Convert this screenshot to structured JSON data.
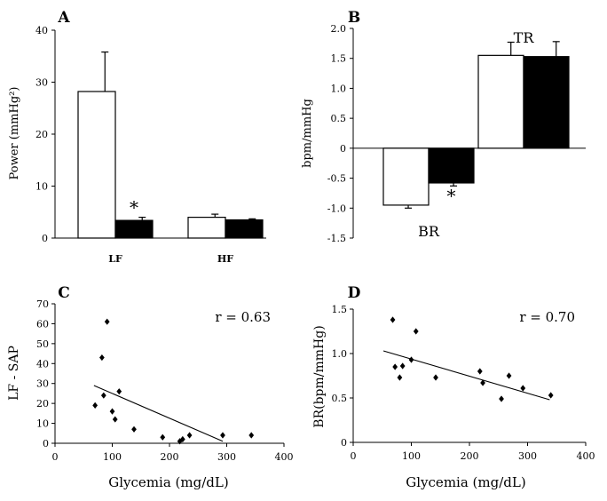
{
  "chart_data": [
    {
      "panel": "A",
      "type": "bar",
      "ylabel": "Power (mmHg²)",
      "ylim": [
        0,
        40
      ],
      "yticks": [
        "0",
        "10",
        "20",
        "30",
        "40"
      ],
      "categories": [
        "LF",
        "HF"
      ],
      "series": [
        {
          "name": "white",
          "values": [
            28.2,
            4.0
          ],
          "errors": [
            7.6,
            0.6
          ]
        },
        {
          "name": "black",
          "values": [
            3.4,
            3.5
          ],
          "errors": [
            0.6,
            0.2
          ]
        }
      ],
      "annotations": [
        {
          "text": "*",
          "category": "LF",
          "series": "black"
        }
      ]
    },
    {
      "panel": "B",
      "type": "bar",
      "ylabel": "bpm/mmHg",
      "ylim": [
        -1.5,
        2.0
      ],
      "yticks": [
        "2.0",
        "1.5",
        "1.0",
        "0.5",
        "0",
        "-0.5",
        "-1.0",
        "-1.5"
      ],
      "categories": [
        "BR",
        "TR"
      ],
      "series": [
        {
          "name": "white",
          "values": [
            -0.95,
            1.55
          ],
          "errors": [
            0.05,
            0.22
          ]
        },
        {
          "name": "black",
          "values": [
            -0.58,
            1.53
          ],
          "errors": [
            0.05,
            0.25
          ]
        }
      ],
      "annotations": [
        {
          "text": "*",
          "category": "BR",
          "series": "black"
        }
      ]
    },
    {
      "panel": "C",
      "type": "scatter",
      "xlabel": "Glycemia (mg/dL)",
      "ylabel": "LF - SAP",
      "xlim": [
        0,
        400
      ],
      "ylim": [
        0,
        70
      ],
      "xticks": [
        "0",
        "100",
        "200",
        "300",
        "400"
      ],
      "yticks": [
        "0",
        "10",
        "20",
        "30",
        "40",
        "50",
        "60",
        "70"
      ],
      "r_label": "r = 0.63",
      "points": [
        [
          70,
          19
        ],
        [
          82,
          43
        ],
        [
          85,
          24
        ],
        [
          91,
          61
        ],
        [
          100,
          16
        ],
        [
          105,
          12
        ],
        [
          112,
          26
        ],
        [
          138,
          7
        ],
        [
          188,
          3
        ],
        [
          218,
          1
        ],
        [
          223,
          2
        ],
        [
          235,
          4
        ],
        [
          293,
          4
        ],
        [
          343,
          4
        ]
      ],
      "fit_line": [
        [
          68,
          29
        ],
        [
          293,
          1
        ]
      ]
    },
    {
      "panel": "D",
      "type": "scatter",
      "xlabel": "Glycemia (mg/dL)",
      "ylabel": "BR(bpm/mmHg)",
      "xlim": [
        0,
        400
      ],
      "ylim": [
        0,
        1.5
      ],
      "xticks": [
        "0",
        "100",
        "200",
        "300",
        "400"
      ],
      "yticks": [
        "0",
        "0.5",
        "1.0",
        "1.5"
      ],
      "r_label": "r = 0.70",
      "points": [
        [
          68,
          1.38
        ],
        [
          72,
          0.85
        ],
        [
          80,
          0.73
        ],
        [
          85,
          0.86
        ],
        [
          100,
          0.93
        ],
        [
          108,
          1.25
        ],
        [
          142,
          0.73
        ],
        [
          218,
          0.8
        ],
        [
          223,
          0.67
        ],
        [
          255,
          0.49
        ],
        [
          268,
          0.75
        ],
        [
          292,
          0.61
        ],
        [
          340,
          0.53
        ]
      ],
      "fit_line": [
        [
          52,
          1.03
        ],
        [
          338,
          0.48
        ]
      ]
    }
  ]
}
